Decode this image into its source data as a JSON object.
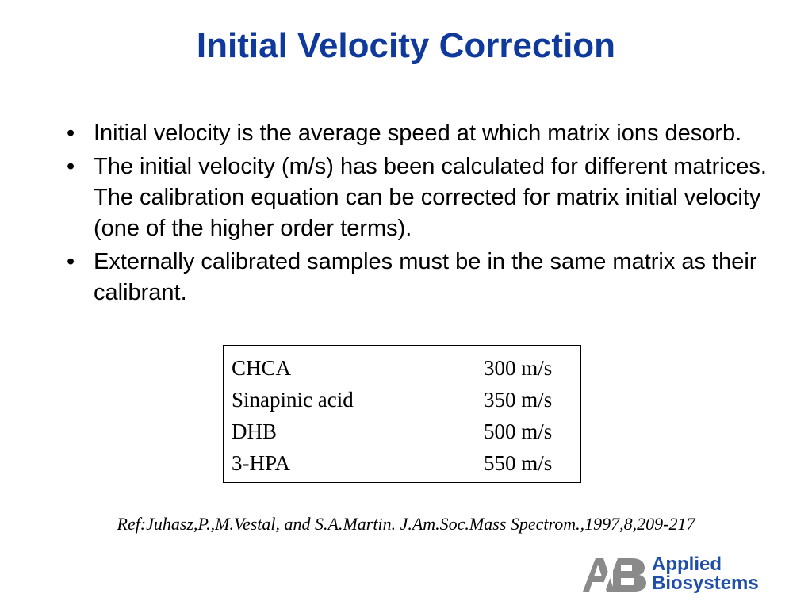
{
  "slide": {
    "title": "Initial Velocity Correction",
    "bullets": [
      "Initial velocity is the average speed at which matrix ions desorb.",
      "The initial velocity (m/s) has been calculated for different matrices. The calibration equation can be corrected for matrix initial velocity (one of the higher order terms).",
      "Externally calibrated samples must be in the same matrix as their calibrant."
    ],
    "bullet_char": "•"
  },
  "table": {
    "rows": [
      {
        "matrix": "CHCA",
        "velocity": "300 m/s"
      },
      {
        "matrix": "Sinapinic acid",
        "velocity": "350 m/s"
      },
      {
        "matrix": "DHB",
        "velocity": "500 m/s"
      },
      {
        "matrix": "3-HPA",
        "velocity": "550 m/s"
      }
    ]
  },
  "reference": "Ref:Juhasz,P.,M.Vestal, and S.A.Martin. J.Am.Soc.Mass Spectrom.,1997,8,209-217",
  "logo": {
    "line1": "Applied",
    "line2": "Biosystems",
    "mark_text": "AB",
    "colors": {
      "brand_blue": "#1f4fa8",
      "mark_gray": "#8a8a8a"
    }
  },
  "colors": {
    "title": "#0f3a9b"
  }
}
